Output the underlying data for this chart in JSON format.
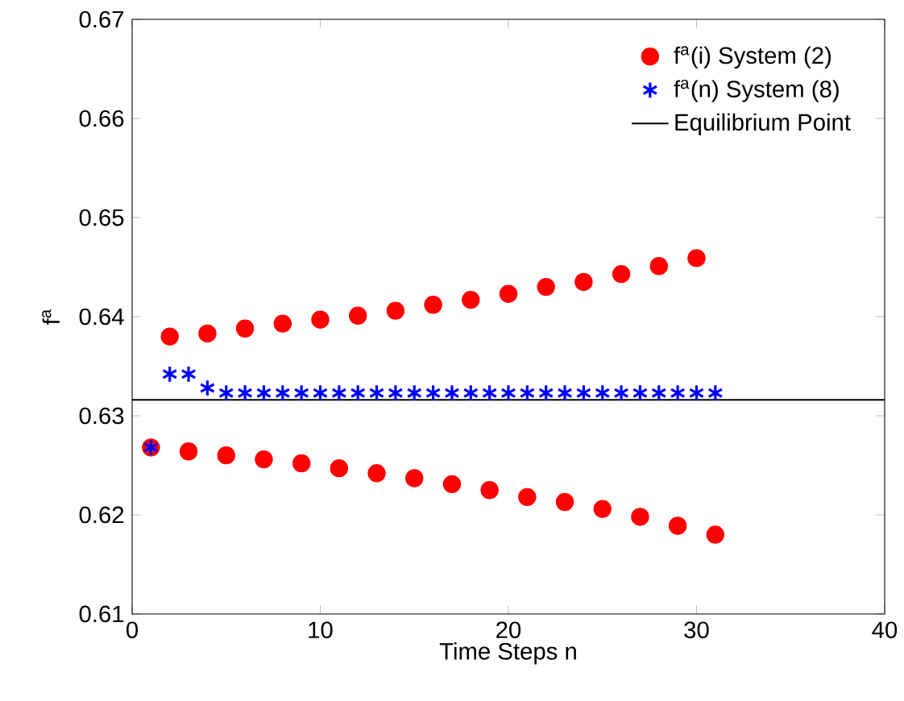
{
  "chart_data": {
    "type": "scatter",
    "xlabel": "Time Steps n",
    "ylabel": "f$^{a}$",
    "xlim": [
      0,
      40
    ],
    "xticks": [
      0,
      10,
      20,
      30,
      40
    ],
    "ylim": [
      0.61,
      0.67
    ],
    "yticks": [
      0.61,
      0.62,
      0.63,
      0.64,
      0.65,
      0.66,
      0.67
    ],
    "grid": false,
    "legend": "top right",
    "series": [
      {
        "name": "f$^{a}$(i) System (2)",
        "color": "#ff0000",
        "marker": "circle",
        "x": [
          1,
          2,
          3,
          4,
          5,
          6,
          7,
          8,
          9,
          10,
          11,
          12,
          13,
          14,
          15,
          16,
          17,
          18,
          19,
          20,
          21,
          22,
          23,
          24,
          25,
          26,
          27,
          28,
          29,
          30,
          31
        ],
        "values": [
          0.6268,
          0.638,
          0.6264,
          0.6383,
          0.626,
          0.6388,
          0.6256,
          0.6393,
          0.6252,
          0.6397,
          0.6247,
          0.6401,
          0.6242,
          0.6406,
          0.6237,
          0.6412,
          0.6231,
          0.6417,
          0.6225,
          0.6423,
          0.6218,
          0.643,
          0.6213,
          0.6435,
          0.6206,
          0.6443,
          0.6198,
          0.6451,
          0.6189,
          0.6459,
          0.618
        ]
      },
      {
        "name": "f$^{a}$(n) System (8)",
        "color": "#0000ff",
        "marker": "cross",
        "x": [
          1,
          2,
          3,
          4,
          5,
          6,
          7,
          8,
          9,
          10,
          11,
          12,
          13,
          14,
          15,
          16,
          17,
          18,
          19,
          20,
          21,
          22,
          23,
          24,
          25,
          26,
          27,
          28,
          29,
          30,
          31
        ],
        "values": [
          0.6268,
          0.6342,
          0.6342,
          0.6328,
          0.6323,
          0.6323,
          0.6323,
          0.6323,
          0.6323,
          0.6323,
          0.6323,
          0.6323,
          0.6323,
          0.6323,
          0.6323,
          0.6323,
          0.6323,
          0.6323,
          0.6323,
          0.6323,
          0.6323,
          0.6323,
          0.6323,
          0.6323,
          0.6323,
          0.6323,
          0.6323,
          0.6323,
          0.6323,
          0.6323,
          0.6323
        ]
      }
    ],
    "ref_lines": [
      {
        "axis": "y",
        "value": 0.6316,
        "label": "Equilibrium Point",
        "color": "#000000",
        "line_style": "solid"
      }
    ]
  }
}
